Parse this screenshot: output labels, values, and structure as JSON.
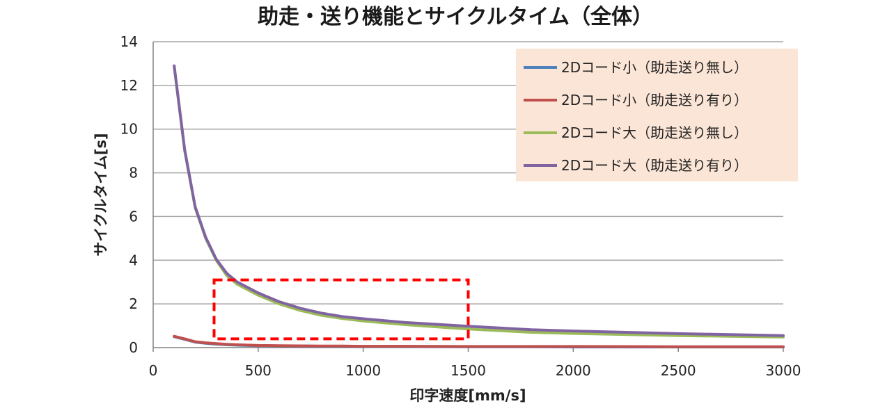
{
  "chart_data": {
    "type": "line",
    "title": "助走・送り機能とサイクルタイム（全体）",
    "xlabel": "印字速度[mm/s]",
    "ylabel": "サイクルタイム[s]",
    "xlim": [
      0,
      3000
    ],
    "ylim": [
      0,
      14
    ],
    "xticks": [
      "0",
      "500",
      "1000",
      "1500",
      "2000",
      "2500",
      "3000"
    ],
    "yticks": [
      "0",
      "2",
      "4",
      "6",
      "8",
      "10",
      "12",
      "14"
    ],
    "grid": true,
    "legend_position": "top-right",
    "x": [
      100,
      150,
      200,
      250,
      300,
      350,
      400,
      500,
      600,
      700,
      800,
      900,
      1000,
      1200,
      1500,
      1800,
      2000,
      2500,
      3000
    ],
    "series": [
      {
        "name": "2Dコード小（助走送り無し）",
        "color": "#4f81bd",
        "values": [
          0.5,
          0.38,
          0.25,
          0.2,
          0.16,
          0.13,
          0.11,
          0.09,
          0.08,
          0.07,
          0.06,
          0.06,
          0.05,
          0.05,
          0.04,
          0.04,
          0.03,
          0.03,
          0.03
        ]
      },
      {
        "name": "2Dコード小（助走送り有り）",
        "color": "#c0504d",
        "values": [
          0.52,
          0.4,
          0.27,
          0.22,
          0.18,
          0.15,
          0.13,
          0.1,
          0.09,
          0.08,
          0.07,
          0.07,
          0.06,
          0.06,
          0.05,
          0.05,
          0.05,
          0.04,
          0.04
        ]
      },
      {
        "name": "2Dコード大（助走送り無し）",
        "color": "#9bbb59",
        "values": [
          12.85,
          9.0,
          6.4,
          5.0,
          4.0,
          3.3,
          2.9,
          2.4,
          2.0,
          1.7,
          1.48,
          1.33,
          1.22,
          1.05,
          0.85,
          0.7,
          0.65,
          0.55,
          0.48
        ]
      },
      {
        "name": "2Dコード大（助走送り有り）",
        "color": "#8064a2",
        "values": [
          12.9,
          9.05,
          6.45,
          5.05,
          4.05,
          3.4,
          3.0,
          2.5,
          2.1,
          1.8,
          1.58,
          1.42,
          1.32,
          1.15,
          0.98,
          0.82,
          0.76,
          0.64,
          0.55
        ]
      }
    ],
    "annotation": {
      "shape": "dashed-rectangle",
      "color": "#ff0000",
      "x_range": [
        290,
        1500
      ],
      "y_range": [
        0.4,
        3.1
      ]
    }
  }
}
